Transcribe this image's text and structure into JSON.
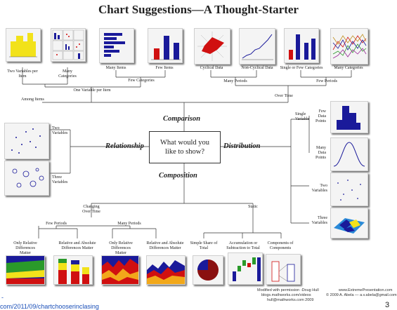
{
  "title": "Chart Suggestions—A Thought-Starter",
  "center_question": "What would you like to show?",
  "categories": {
    "comparison": "Comparison",
    "relationship": "Relationship",
    "distribution": "Distribution",
    "composition": "Composition"
  },
  "comparison": {
    "two_vars_per_item": "Two Variables per Item",
    "many_categories": "Many Categories",
    "many_items": "Many Items",
    "few_items": "Few Items",
    "cyclical": "Cyclical Data",
    "non_cyclical": "Non-Cyclical Data",
    "single_few_categories": "Single or Few Categories",
    "many_categories_2": "Many Categories",
    "few_categories": "Few Categories",
    "one_var_per_item": "One Variable per Item",
    "many_periods": "Many Periods",
    "few_periods": "Few Periods",
    "among_items": "Among Items",
    "over_time": "Over Time"
  },
  "relationship": {
    "two_variables": "Two Variables",
    "three_variables": "Three Variables"
  },
  "distribution": {
    "single_variable": "Single Variable",
    "few_data_points": "Few Data Points",
    "many_data_points": "Many Data Points",
    "two_variables": "Two Variables",
    "three_variables": "Three Variables"
  },
  "composition": {
    "changing_over_time": "Changing Over Time",
    "static": "Static",
    "few_periods": "Few Periods",
    "many_periods": "Many Periods",
    "only_relative_1": "Only Relative Differences Matter",
    "relative_absolute_1": "Relative and Absolute Differences Matter",
    "only_relative_2": "Only Relative Differences Matter",
    "relative_absolute_2": "Relative and Absolute Differences Matter",
    "simple_share": "Simple Share of Total",
    "accumulation": "Accumulation or Subtraction to Total",
    "components": "Components of Components"
  },
  "credits": {
    "modified": "Modified with permission -Doug Hull",
    "blog": "blogs.mathworks.com/videos",
    "email": "hull@mathworks.com 2009",
    "site": "www.ExtremePresentation.com",
    "copyright": "© 2009  A. Abela — a.v.abela@gmail.com"
  },
  "footer_url": "com/2011/09/chartchooserinclasing",
  "dash": "-",
  "page_number": "3",
  "colors": {
    "blue": "#1a1a9a",
    "red": "#d01010",
    "yellow": "#f2e21a",
    "accent_link": "#1a4fb8"
  }
}
